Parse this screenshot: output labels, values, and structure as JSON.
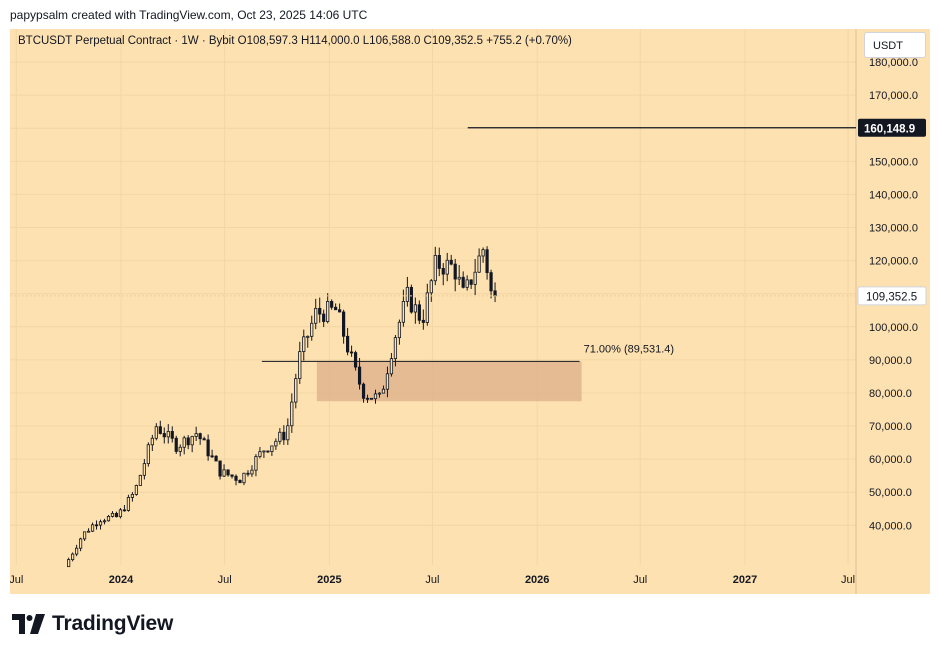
{
  "header": {
    "attribution": "papypsalm created with TradingView.com, Oct 23, 2025 14:06 UTC"
  },
  "legend": {
    "symbol": "BTCUSDT Perpetual Contract · 1W · Bybit",
    "open": "O108,597.3",
    "high": "H114,000.0",
    "low": "L106,588.0",
    "close": "C109,352.5",
    "change": "+755.2 (+0.70%)"
  },
  "currency_button": "USDT",
  "footer": {
    "brand": "TradingView"
  },
  "colors": {
    "background": "#fde1b0",
    "candle": "#131722",
    "zone": "#e0b48f",
    "price_label_bg": "#131722"
  },
  "chart_data": {
    "type": "candlestick",
    "interval": "1W",
    "x_range": [
      "2023-06-20",
      "2027-07-15"
    ],
    "x_tick_labels": [
      {
        "label": "Jul",
        "date": "2023-07-01"
      },
      {
        "label": "2024",
        "date": "2024-01-01"
      },
      {
        "label": "Jul",
        "date": "2024-07-01"
      },
      {
        "label": "2025",
        "date": "2025-01-01"
      },
      {
        "label": "Jul",
        "date": "2025-07-01"
      },
      {
        "label": "2026",
        "date": "2026-01-01"
      },
      {
        "label": "Jul",
        "date": "2026-07-01"
      },
      {
        "label": "2027",
        "date": "2027-01-01"
      },
      {
        "label": "Jul",
        "date": "2027-07-01"
      }
    ],
    "y_range": [
      28000,
      190000
    ],
    "y_ticks": [
      {
        "value": 40000,
        "label": "40,000.0"
      },
      {
        "value": 50000,
        "label": "50,000.0"
      },
      {
        "value": 60000,
        "label": "60,000.0"
      },
      {
        "value": 70000,
        "label": "70,000.0"
      },
      {
        "value": 80000,
        "label": "80,000.0"
      },
      {
        "value": 90000,
        "label": "90,000.0"
      },
      {
        "value": 100000,
        "label": "100,000.0"
      },
      {
        "value": 110000,
        "label": "110,000.0"
      },
      {
        "value": 120000,
        "label": "120,000.0"
      },
      {
        "value": 130000,
        "label": "130,000.0"
      },
      {
        "value": 140000,
        "label": "140,000.0"
      },
      {
        "value": 150000,
        "label": "150,000.0"
      },
      {
        "value": 160000,
        "label": "160,000.0"
      },
      {
        "value": 170000,
        "label": "170,000.0"
      },
      {
        "value": 180000,
        "label": "180,000.0"
      }
    ],
    "grid": true,
    "series_key_closes": [
      {
        "date": "2023-10-01",
        "close": 27500
      },
      {
        "date": "2023-11-01",
        "close": 37000
      },
      {
        "date": "2023-12-01",
        "close": 42000
      },
      {
        "date": "2024-01-01",
        "close": 42500
      },
      {
        "date": "2024-02-01",
        "close": 50000
      },
      {
        "date": "2024-03-10",
        "close": 70000
      },
      {
        "date": "2024-04-15",
        "close": 64000
      },
      {
        "date": "2024-05-20",
        "close": 68000
      },
      {
        "date": "2024-07-01",
        "close": 56000
      },
      {
        "date": "2024-08-05",
        "close": 54000
      },
      {
        "date": "2024-09-15",
        "close": 63000
      },
      {
        "date": "2024-10-25",
        "close": 68000
      },
      {
        "date": "2024-11-15",
        "close": 90000
      },
      {
        "date": "2024-12-15",
        "close": 104000
      },
      {
        "date": "2025-01-20",
        "close": 105000
      },
      {
        "date": "2025-02-25",
        "close": 85000
      },
      {
        "date": "2025-03-10",
        "close": 80000
      },
      {
        "date": "2025-04-07",
        "close": 78000
      },
      {
        "date": "2025-05-01",
        "close": 96000
      },
      {
        "date": "2025-05-25",
        "close": 109000
      },
      {
        "date": "2025-06-20",
        "close": 102000
      },
      {
        "date": "2025-07-14",
        "close": 119000
      },
      {
        "date": "2025-08-15",
        "close": 118000
      },
      {
        "date": "2025-09-01",
        "close": 109000
      },
      {
        "date": "2025-10-06",
        "close": 124000
      },
      {
        "date": "2025-10-20",
        "close": 109352.5
      }
    ],
    "last_price": {
      "value": 109352.5,
      "label": "109,352.5"
    },
    "horizontal_line": {
      "value": 160148.9,
      "label": "160,148.9",
      "start_date": "2025-09-01"
    },
    "zone": {
      "top": 89531.4,
      "bottom": 77500,
      "start_date": "2024-12-10",
      "end_date": "2026-03-20",
      "label": "71.00% (89,531.4)"
    }
  }
}
